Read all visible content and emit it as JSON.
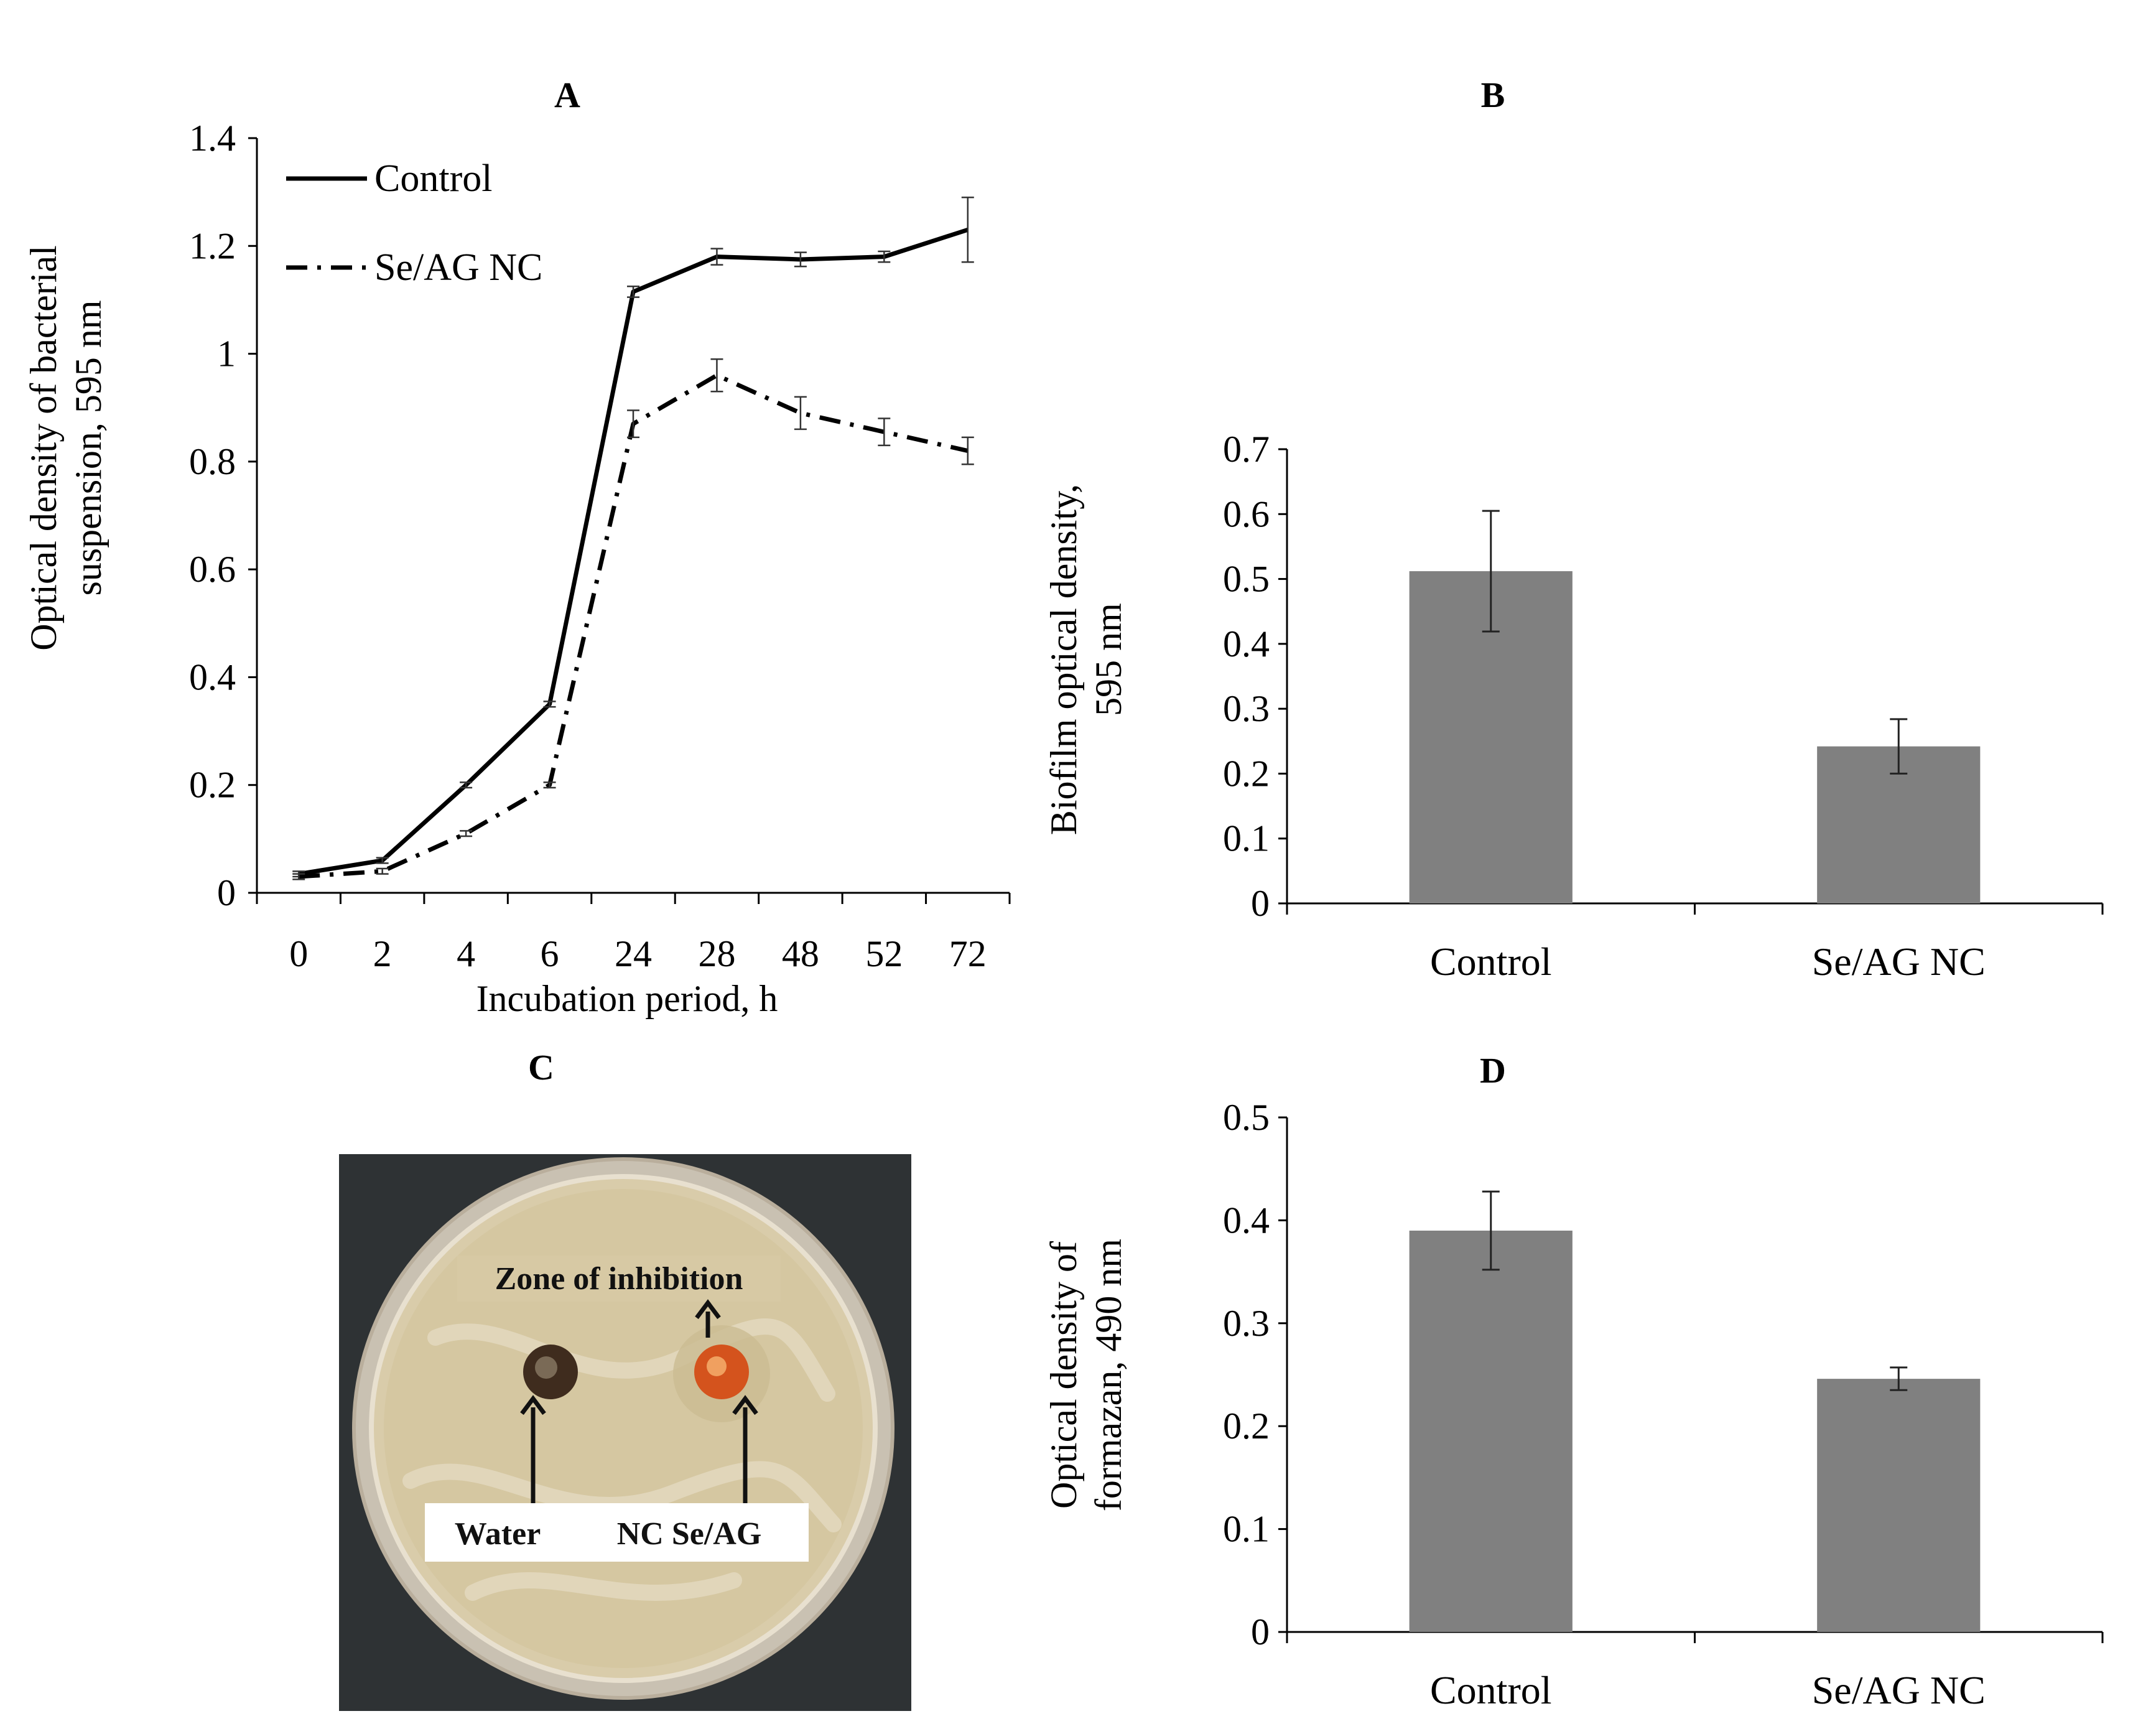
{
  "chart_data": [
    {
      "panel": "A",
      "type": "line",
      "title": "A",
      "xlabel": "Incubation period,  h",
      "ylabel": [
        "Optical  density of bacterial",
        "suspension, 595 nm"
      ],
      "categories": [
        "0",
        "2",
        "4",
        "6",
        "24",
        "28",
        "48",
        "52",
        "72"
      ],
      "ylim": [
        0,
        1.4
      ],
      "yticks": [
        "0",
        "0.2",
        "0.4",
        "0.6",
        "0.8",
        "1",
        "1.2",
        "1.4"
      ],
      "legend_position": "top-left",
      "series": [
        {
          "name": "Control",
          "style": "solid",
          "values": [
            0.035,
            0.06,
            0.2,
            0.35,
            1.115,
            1.18,
            1.175,
            1.18,
            1.23
          ],
          "errors": [
            0.005,
            0.005,
            0.005,
            0.005,
            0.01,
            0.015,
            0.013,
            0.01,
            0.06
          ]
        },
        {
          "name": "Se/AG NC",
          "style": "dash-dot",
          "values": [
            0.03,
            0.04,
            0.11,
            0.2,
            0.87,
            0.96,
            0.89,
            0.855,
            0.82
          ],
          "errors": [
            0.005,
            0.005,
            0.005,
            0.005,
            0.025,
            0.03,
            0.03,
            0.025,
            0.025
          ]
        }
      ]
    },
    {
      "panel": "B",
      "type": "bar",
      "title": "B",
      "xlabel": "",
      "ylabel": [
        "Biofilm optical density,",
        "595 nm"
      ],
      "categories": [
        "Control",
        "Se/AG NC"
      ],
      "values": [
        0.512,
        0.242
      ],
      "errors": [
        0.093,
        0.042
      ],
      "ylim": [
        0,
        0.7
      ],
      "yticks": [
        "0",
        "0.1",
        "0.2",
        "0.3",
        "0.4",
        "0.5",
        "0.6",
        "0.7"
      ],
      "color": "#808080"
    },
    {
      "panel": "D",
      "type": "bar",
      "title": "D",
      "xlabel": "",
      "ylabel": [
        "Optical  density of",
        "formazan, 490 nm"
      ],
      "categories": [
        "Control",
        "Se/AG NC"
      ],
      "values": [
        0.39,
        0.246
      ],
      "errors": [
        0.038,
        0.011
      ],
      "ylim": [
        0,
        0.5
      ],
      "yticks": [
        "0",
        "0.1",
        "0.2",
        "0.3",
        "0.4",
        "0.5"
      ],
      "color": "#808080"
    }
  ],
  "photo": {
    "panel_label": "C",
    "zone_label": "Zone of inhibition",
    "water_label": "Water",
    "nc_label": "NC Se/AG",
    "colors": {
      "background": "#2e3234",
      "dish_rim": "#cdc4b4",
      "agar": "#d7c9a6",
      "water_well": "#3f2c1e",
      "nc_well": "#d4531d"
    }
  }
}
